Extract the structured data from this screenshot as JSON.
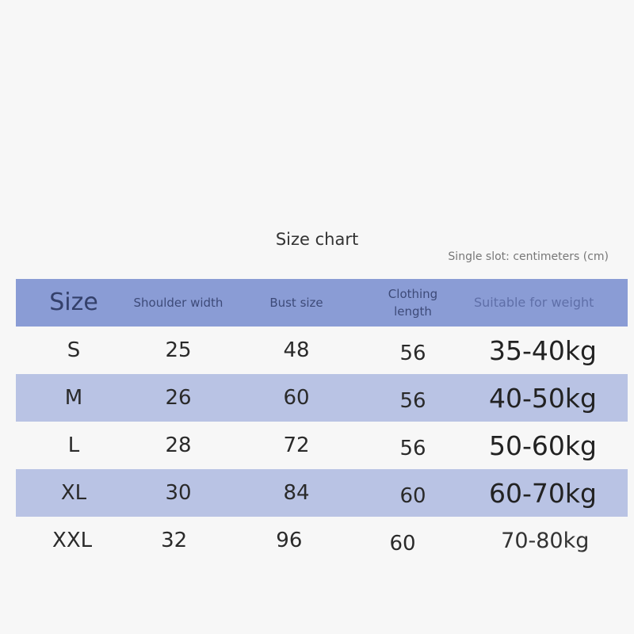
{
  "title": "Size chart",
  "unit_note": "Single slot: centimeters (cm)",
  "colors": {
    "header_bg": "#8a9cd5",
    "alt_row_bg": "#b9c3e4",
    "page_bg": "#f7f7f7"
  },
  "headers": [
    "Size",
    "Shoulder width",
    "Bust size",
    "Clothing length",
    "Suitable for weight"
  ],
  "rows": [
    [
      "S",
      "25",
      "48",
      "56",
      "35-40kg"
    ],
    [
      "M",
      "26",
      "60",
      "56",
      "40-50kg"
    ],
    [
      "L",
      "28",
      "72",
      "56",
      "50-60kg"
    ],
    [
      "XL",
      "30",
      "84",
      "60",
      "60-70kg"
    ],
    [
      "XXL",
      "32",
      "96",
      "60",
      "70-80kg"
    ]
  ]
}
